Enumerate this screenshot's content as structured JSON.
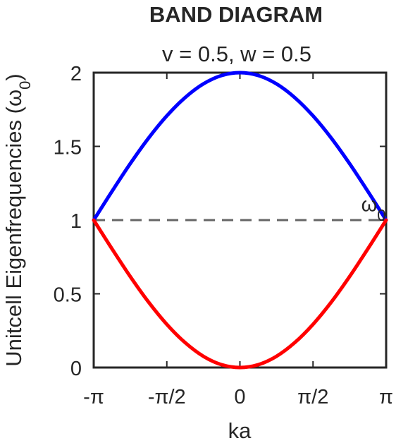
{
  "chart_data": {
    "type": "line",
    "title": "BAND DIAGRAM",
    "subtitle": "v = 0.5, w = 0.5",
    "xlabel": "ka",
    "ylabel": "Unitcell Eigenfrequencies (ω",
    "ylabel_subscript": "0",
    "ylabel_close": ")",
    "xlim": [
      -3.14159,
      3.14159
    ],
    "ylim": [
      0,
      2
    ],
    "x_ticks": [
      -3.14159,
      -1.5708,
      0,
      1.5708,
      3.14159
    ],
    "x_tick_labels": [
      "-π",
      "-π/2",
      "0",
      "π/2",
      "π"
    ],
    "y_ticks": [
      0,
      0.5,
      1,
      1.5,
      2
    ],
    "y_tick_labels": [
      "0",
      "0.5",
      "1",
      "1.5",
      "2"
    ],
    "grid": false,
    "params": {
      "v": 0.5,
      "w": 0.5
    },
    "series": [
      {
        "color": "#0000ff",
        "x": [
          -3.14159,
          -2.74889,
          -2.35619,
          -1.9635,
          -1.5708,
          -1.1781,
          -0.7854,
          -0.3927,
          0,
          0.3927,
          0.7854,
          1.1781,
          1.5708,
          1.9635,
          2.35619,
          2.74889,
          3.14159
        ],
        "y": [
          1.0,
          1.195,
          1.383,
          1.556,
          1.707,
          1.831,
          1.924,
          1.981,
          2.0,
          1.981,
          1.924,
          1.831,
          1.707,
          1.556,
          1.383,
          1.195,
          1.0
        ]
      },
      {
        "color": "#ff0000",
        "x": [
          -3.14159,
          -2.74889,
          -2.35619,
          -1.9635,
          -1.5708,
          -1.1781,
          -0.7854,
          -0.3927,
          0,
          0.3927,
          0.7854,
          1.1781,
          1.5708,
          1.9635,
          2.35619,
          2.74889,
          3.14159
        ],
        "y": [
          1.0,
          0.805,
          0.617,
          0.444,
          0.293,
          0.169,
          0.076,
          0.019,
          0.0,
          0.019,
          0.076,
          0.169,
          0.293,
          0.444,
          0.617,
          0.805,
          1.0
        ]
      }
    ],
    "reference_line": {
      "y": 1,
      "style": "dashed",
      "color": "#666666"
    },
    "annotation": {
      "symbol": "ω",
      "subscript": "0",
      "x": 2.9,
      "y": 1.03
    }
  }
}
